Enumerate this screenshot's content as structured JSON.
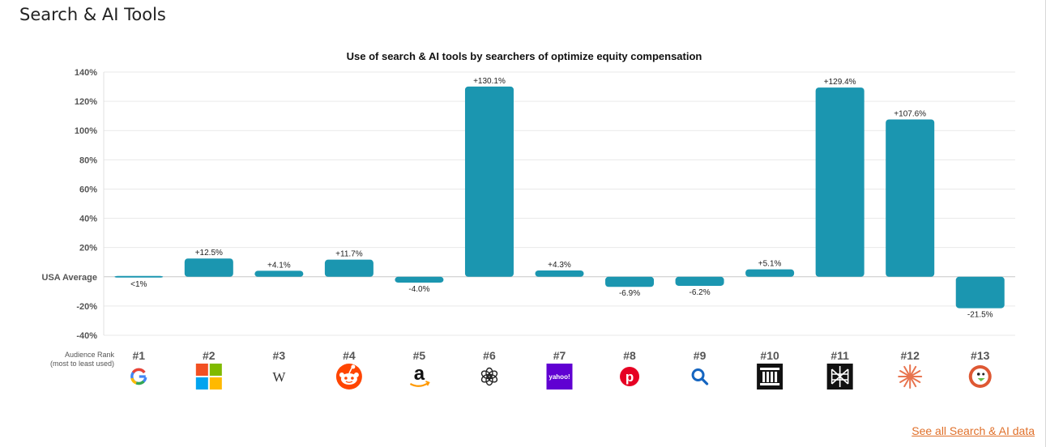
{
  "page_title": "Search & AI Tools",
  "see_all_link": "See all Search & AI data",
  "chart_data": {
    "type": "bar",
    "title": "Use of search & AI tools by searchers of optimize equity compensation",
    "baseline_label": "USA Average",
    "ylim": [
      -40,
      140
    ],
    "yticks": [
      140,
      120,
      100,
      80,
      60,
      40,
      20,
      0,
      -20,
      -40
    ],
    "ytick_labels": [
      "140%",
      "120%",
      "100%",
      "80%",
      "60%",
      "40%",
      "20%",
      "USA Average",
      "-20%",
      "-40%"
    ],
    "grid": true,
    "bar_color": "#1b96b0",
    "rank_axis_label": [
      "Audience Rank",
      "(most to least used)"
    ],
    "categories": [
      "#1",
      "#2",
      "#3",
      "#4",
      "#5",
      "#6",
      "#7",
      "#8",
      "#9",
      "#10",
      "#11",
      "#12",
      "#13"
    ],
    "values": [
      0.5,
      12.5,
      4.1,
      11.7,
      -4.0,
      130.1,
      4.3,
      -6.9,
      -6.2,
      5.1,
      129.4,
      107.6,
      -21.5
    ],
    "value_labels": [
      "<1%",
      "+12.5%",
      "+4.1%",
      "+11.7%",
      "-4.0%",
      "+130.1%",
      "+4.3%",
      "-6.9%",
      "-6.2%",
      "+5.1%",
      "+129.4%",
      "+107.6%",
      "-21.5%"
    ],
    "icons": [
      "google-icon",
      "microsoft-icon",
      "wikipedia-icon",
      "reddit-icon",
      "amazon-icon",
      "chatgpt-icon",
      "yahoo-icon",
      "pinterest-icon",
      "search-icon",
      "archive-icon",
      "perplexity-icon",
      "claude-icon",
      "duckduckgo-icon"
    ]
  }
}
